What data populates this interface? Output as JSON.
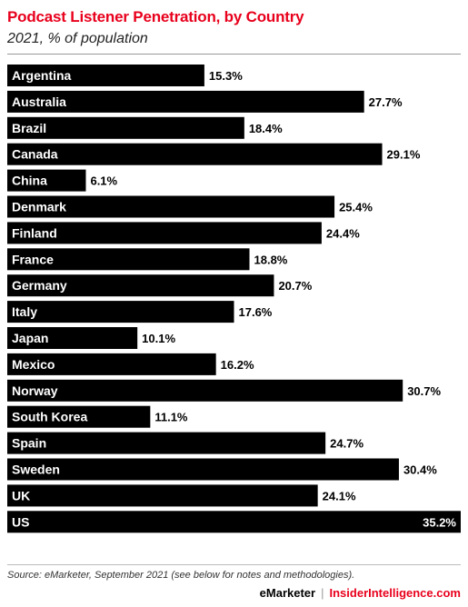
{
  "header": {
    "title": "Podcast Listener Penetration, by Country",
    "subtitle": "2021, % of population"
  },
  "footer": {
    "source": "Source: eMarketer, September 2021 (see below for notes and methodologies).",
    "brand_left": "eMarketer",
    "separator": "|",
    "brand_right": "InsiderIntelligence.com"
  },
  "colors": {
    "bar": "#000000",
    "accent": "#e8001c"
  },
  "chart_data": {
    "type": "bar",
    "orientation": "horizontal",
    "title": "Podcast Listener Penetration, by Country",
    "subtitle": "2021, % of population",
    "categories": [
      "Argentina",
      "Australia",
      "Brazil",
      "Canada",
      "China",
      "Denmark",
      "Finland",
      "France",
      "Germany",
      "Italy",
      "Japan",
      "Mexico",
      "Norway",
      "South Korea",
      "Spain",
      "Sweden",
      "UK",
      "US"
    ],
    "values": [
      15.3,
      27.7,
      18.4,
      29.1,
      6.1,
      25.4,
      24.4,
      18.8,
      20.7,
      17.6,
      10.1,
      16.2,
      30.7,
      11.1,
      24.7,
      30.4,
      24.1,
      35.2
    ],
    "value_labels": [
      "15.3%",
      "27.7%",
      "18.4%",
      "29.1%",
      "6.1%",
      "25.4%",
      "24.4%",
      "18.8%",
      "20.7%",
      "17.6%",
      "10.1%",
      "16.2%",
      "30.7%",
      "11.1%",
      "24.7%",
      "30.4%",
      "24.1%",
      "35.2%"
    ],
    "xlim": [
      0,
      35.2
    ],
    "grid": false,
    "legend": "none"
  }
}
